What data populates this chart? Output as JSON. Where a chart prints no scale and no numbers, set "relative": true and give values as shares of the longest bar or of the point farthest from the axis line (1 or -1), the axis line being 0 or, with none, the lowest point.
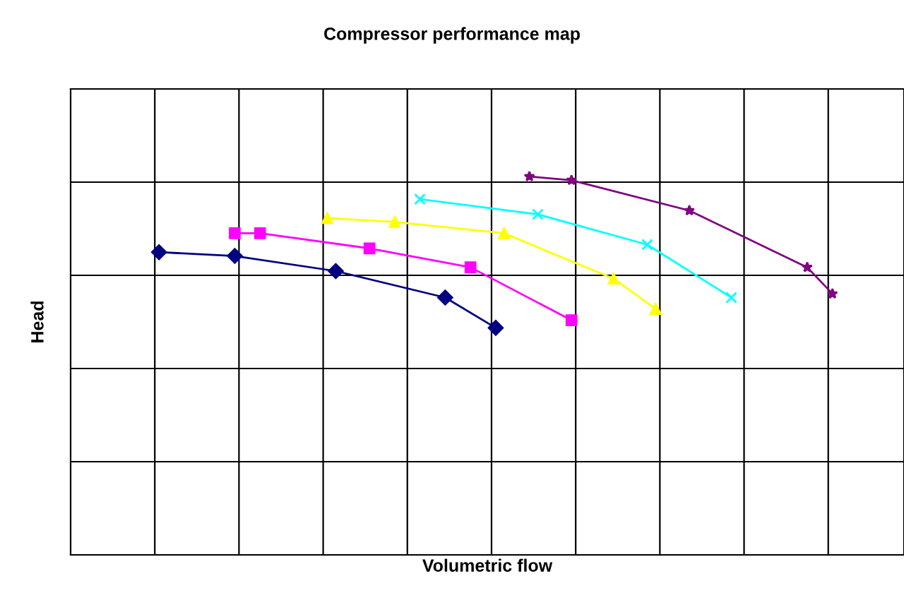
{
  "chart_data": {
    "type": "line",
    "title": "Compressor performance map",
    "xlabel": "Volumetric flow",
    "ylabel": "Head",
    "relative": true,
    "grid": true,
    "tick_labels": false,
    "line_style": "solid",
    "categories": [
      null,
      null,
      null,
      null,
      null,
      null,
      null,
      null,
      null,
      null,
      null,
      null,
      null,
      null,
      null,
      null,
      null,
      null,
      null,
      null,
      null,
      null,
      null,
      null,
      null,
      null,
      null,
      null,
      null,
      null,
      null,
      null,
      null,
      null,
      null,
      null,
      null,
      null,
      null,
      null,
      null,
      null,
      null,
      null,
      null,
      null,
      null,
      null,
      null,
      null,
      null,
      null,
      null,
      null,
      null,
      null,
      null,
      null,
      null,
      null,
      null,
      null,
      null,
      null,
      null,
      null,
      null,
      null,
      null,
      null,
      null,
      null,
      null,
      null,
      null,
      null,
      null,
      null,
      null,
      null,
      null,
      null,
      null,
      null,
      null,
      null,
      null,
      null,
      null,
      null,
      null,
      null,
      null,
      null,
      null,
      null,
      null,
      null,
      null
    ],
    "series": [
      {
        "color": "#000080",
        "marker": "diamond",
        "values": [
          null,
          null,
          null,
          null,
          null,
          null,
          null,
          null,
          null,
          null,
          0.8,
          null,
          null,
          null,
          null,
          null,
          null,
          null,
          null,
          0.79,
          null,
          null,
          null,
          null,
          null,
          null,
          null,
          null,
          null,
          null,
          null,
          0.75,
          null,
          null,
          null,
          null,
          null,
          null,
          null,
          null,
          null,
          null,
          null,
          null,
          0.68,
          null,
          null,
          null,
          null,
          null,
          0.6,
          null,
          null,
          null,
          null,
          null,
          null,
          null,
          null,
          null,
          null,
          null,
          null,
          null,
          null,
          null,
          null,
          null,
          null,
          null,
          null,
          null,
          null,
          null,
          null,
          null,
          null,
          null,
          null,
          null,
          null,
          null,
          null,
          null,
          null,
          null,
          null,
          null,
          null,
          null,
          null,
          null,
          null,
          null,
          null,
          null,
          null,
          null,
          null
        ]
      },
      {
        "color": "#ff00ff",
        "marker": "square",
        "values": [
          null,
          null,
          null,
          null,
          null,
          null,
          null,
          null,
          null,
          null,
          null,
          null,
          null,
          null,
          null,
          null,
          null,
          null,
          null,
          0.85,
          null,
          null,
          0.85,
          null,
          null,
          null,
          null,
          null,
          null,
          null,
          null,
          null,
          null,
          null,
          null,
          0.81,
          null,
          null,
          null,
          null,
          null,
          null,
          null,
          null,
          null,
          null,
          null,
          0.76,
          null,
          null,
          null,
          null,
          null,
          null,
          null,
          null,
          null,
          null,
          null,
          0.62,
          null,
          null,
          null,
          null,
          null,
          null,
          null,
          null,
          null,
          null,
          null,
          null,
          null,
          null,
          null,
          null,
          null,
          null,
          null,
          null,
          null,
          null,
          null,
          null,
          null,
          null,
          null,
          null,
          null,
          null,
          null,
          null,
          null,
          null,
          null,
          null,
          null,
          null,
          null
        ]
      },
      {
        "color": "#ffff00",
        "marker": "triangle",
        "values": [
          null,
          null,
          null,
          null,
          null,
          null,
          null,
          null,
          null,
          null,
          null,
          null,
          null,
          null,
          null,
          null,
          null,
          null,
          null,
          null,
          null,
          null,
          null,
          null,
          null,
          null,
          null,
          null,
          null,
          null,
          0.89,
          null,
          null,
          null,
          null,
          null,
          null,
          null,
          0.88,
          null,
          null,
          null,
          null,
          null,
          null,
          null,
          null,
          null,
          null,
          null,
          null,
          0.85,
          null,
          null,
          null,
          null,
          null,
          null,
          null,
          null,
          null,
          null,
          null,
          null,
          0.73,
          null,
          null,
          null,
          null,
          0.65,
          null,
          null,
          null,
          null,
          null,
          null,
          null,
          null,
          null,
          null,
          null,
          null,
          null,
          null,
          null,
          null,
          null,
          null,
          null,
          null,
          null,
          null,
          null,
          null,
          null,
          null,
          null,
          null,
          null
        ]
      },
      {
        "color": "#00ffff",
        "marker": "cross",
        "values": [
          null,
          null,
          null,
          null,
          null,
          null,
          null,
          null,
          null,
          null,
          null,
          null,
          null,
          null,
          null,
          null,
          null,
          null,
          null,
          null,
          null,
          null,
          null,
          null,
          null,
          null,
          null,
          null,
          null,
          null,
          null,
          null,
          null,
          null,
          null,
          null,
          null,
          null,
          null,
          null,
          null,
          0.94,
          null,
          null,
          null,
          null,
          null,
          null,
          null,
          null,
          null,
          null,
          null,
          null,
          null,
          0.9,
          null,
          null,
          null,
          null,
          null,
          null,
          null,
          null,
          null,
          null,
          null,
          null,
          0.82,
          null,
          null,
          null,
          null,
          null,
          null,
          null,
          null,
          null,
          0.68,
          null,
          null,
          null,
          null,
          null,
          null,
          null,
          null,
          null,
          null,
          null,
          null,
          null,
          null,
          null,
          null,
          null,
          null,
          null,
          null
        ]
      },
      {
        "color": "#800080",
        "marker": "star",
        "values": [
          null,
          null,
          null,
          null,
          null,
          null,
          null,
          null,
          null,
          null,
          null,
          null,
          null,
          null,
          null,
          null,
          null,
          null,
          null,
          null,
          null,
          null,
          null,
          null,
          null,
          null,
          null,
          null,
          null,
          null,
          null,
          null,
          null,
          null,
          null,
          null,
          null,
          null,
          null,
          null,
          null,
          null,
          null,
          null,
          null,
          null,
          null,
          null,
          null,
          null,
          null,
          null,
          null,
          null,
          1.0,
          null,
          null,
          null,
          null,
          0.99,
          null,
          null,
          null,
          null,
          null,
          null,
          null,
          null,
          null,
          null,
          null,
          null,
          null,
          0.91,
          null,
          null,
          null,
          null,
          null,
          null,
          null,
          null,
          null,
          null,
          null,
          null,
          null,
          0.76,
          null,
          null,
          0.69,
          null,
          null,
          null,
          null,
          null,
          null,
          null,
          null
        ]
      }
    ]
  }
}
